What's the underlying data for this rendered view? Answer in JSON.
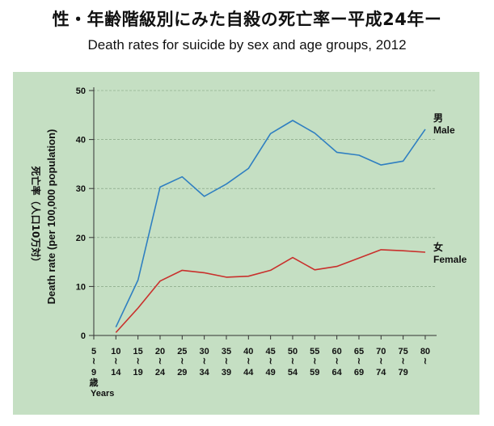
{
  "title_jp": "性・年齢階級別にみた自殺の死亡率ー平成24年ー",
  "title_en": "Death rates for suicide by sex and age groups, 2012",
  "chart_data": {
    "type": "line",
    "ylabel_jp": "死亡率（人口10万対）",
    "ylabel_en": "Death rate (per 100,000 population)",
    "ylim": [
      0,
      50
    ],
    "yticks": [
      0,
      10,
      20,
      30,
      40,
      50
    ],
    "grid": true,
    "categories": [
      {
        "top": "5",
        "bottom": "9",
        "extra": "歳",
        "extra2": "Years"
      },
      {
        "top": "10",
        "bottom": "14"
      },
      {
        "top": "15",
        "bottom": "19"
      },
      {
        "top": "20",
        "bottom": "24"
      },
      {
        "top": "25",
        "bottom": "29"
      },
      {
        "top": "30",
        "bottom": "34"
      },
      {
        "top": "35",
        "bottom": "39"
      },
      {
        "top": "40",
        "bottom": "44"
      },
      {
        "top": "45",
        "bottom": "49"
      },
      {
        "top": "50",
        "bottom": "54"
      },
      {
        "top": "55",
        "bottom": "59"
      },
      {
        "top": "60",
        "bottom": "64"
      },
      {
        "top": "65",
        "bottom": "69"
      },
      {
        "top": "70",
        "bottom": "74"
      },
      {
        "top": "75",
        "bottom": "79"
      },
      {
        "top": "80",
        "bottom": ""
      }
    ],
    "series": [
      {
        "name": "Male",
        "name_jp": "男",
        "color": "#2f7fc1",
        "values": [
          null,
          1.7,
          11.3,
          30.3,
          32.4,
          28.4,
          30.9,
          34.1,
          41.2,
          43.9,
          41.3,
          37.4,
          36.8,
          34.8,
          35.6,
          42.1
        ]
      },
      {
        "name": "Female",
        "name_jp": "女",
        "color": "#c9302c",
        "values": [
          null,
          0.6,
          5.6,
          11.1,
          13.3,
          12.8,
          11.9,
          12.1,
          13.3,
          15.9,
          13.4,
          14.1,
          15.8,
          17.5,
          17.3,
          17.0
        ]
      }
    ]
  }
}
